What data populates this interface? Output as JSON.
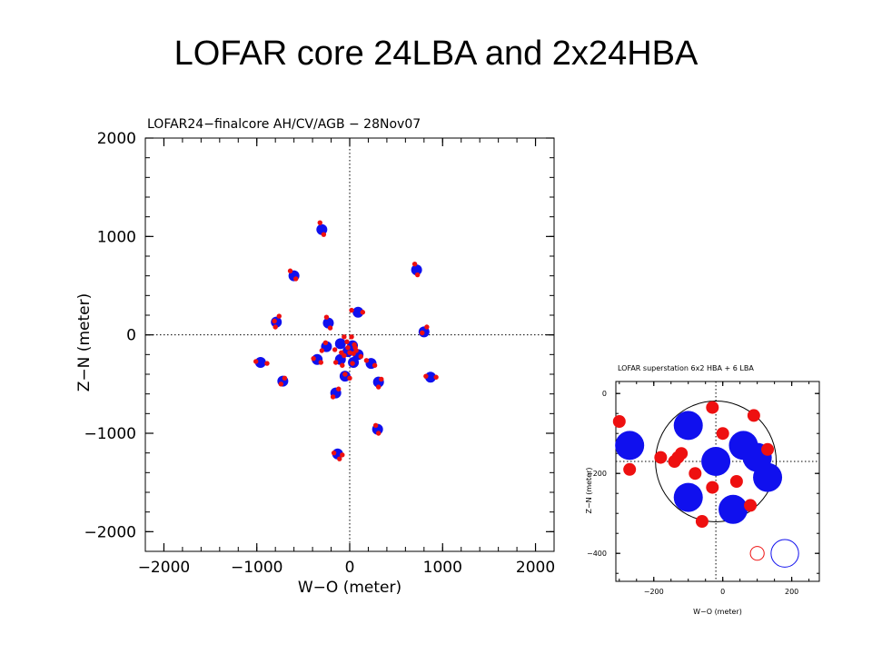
{
  "slide": {
    "title": "LOFAR core  24LBA and 2x24HBA"
  },
  "colors": {
    "hba": "#1010ee",
    "lba": "#ee1010",
    "axis": "#000000"
  },
  "chart_data": [
    {
      "type": "scatter",
      "title": "LOFAR24−finalcore     AH/CV/AGB   − 28Nov07",
      "xlabel": "W−O  (meter)",
      "ylabel": "Z−N  (meter)",
      "xlim": [
        -2200,
        2200
      ],
      "ylim": [
        -2200,
        2000
      ],
      "xticks": [
        -2000,
        -1000,
        0,
        1000,
        2000
      ],
      "xtick_labels": [
        "−2000",
        "−1000",
        "0",
        "1000",
        "2000"
      ],
      "yticks": [
        -2000,
        -1000,
        0,
        1000,
        2000
      ],
      "ytick_labels": [
        "−2000",
        "−1000",
        "0",
        "1000",
        "2000"
      ],
      "crosshair": [
        0,
        0
      ],
      "series": [
        {
          "marker": "blue-dot",
          "x": [
            -300,
            -600,
            -790,
            -230,
            90,
            720,
            800,
            870,
            -960,
            -720,
            -350,
            -250,
            -100,
            30,
            230,
            310,
            300,
            -150,
            -130,
            90,
            -100,
            40,
            -20,
            -50
          ],
          "y": [
            1070,
            600,
            130,
            120,
            230,
            660,
            30,
            -430,
            -280,
            -470,
            -250,
            -120,
            -90,
            -110,
            -290,
            -480,
            -960,
            -590,
            -1210,
            -200,
            -250,
            -280,
            -170,
            -420
          ]
        },
        {
          "marker": "red-dot",
          "x": [
            -320,
            -280,
            -580,
            -640,
            -760,
            -800,
            -810,
            -210,
            -250,
            20,
            140,
            700,
            730,
            780,
            830,
            820,
            930,
            -890,
            -1010,
            -700,
            -740,
            -390,
            -310,
            -260,
            -300,
            -160,
            -60,
            -150,
            20,
            50,
            180,
            270,
            310,
            340,
            280,
            310,
            -120,
            -180,
            -80,
            -170,
            -110,
            -90,
            40,
            120,
            30,
            -80,
            -50,
            0,
            -60,
            70,
            60,
            0,
            -30,
            -20
          ],
          "y": [
            1140,
            1020,
            570,
            650,
            190,
            80,
            140,
            70,
            180,
            250,
            230,
            720,
            610,
            20,
            80,
            -420,
            -430,
            -290,
            -270,
            -440,
            -500,
            -240,
            -280,
            -80,
            -160,
            -150,
            -20,
            -280,
            -20,
            -100,
            -260,
            -310,
            -530,
            -450,
            -920,
            -1000,
            -550,
            -630,
            -1220,
            -1200,
            -1260,
            -180,
            -190,
            -220,
            -290,
            -310,
            -400,
            -440,
            -210,
            -160,
            -130,
            -180,
            -70,
            -130
          ]
        }
      ]
    },
    {
      "type": "scatter",
      "title": "LOFAR superstation    6x2 HBA    + 6 LBA",
      "xlabel": "W−O (meter)",
      "ylabel": "Z−N (meter)",
      "xlim": [
        -310,
        280
      ],
      "ylim": [
        -470,
        30
      ],
      "xticks": [
        -200,
        0,
        200
      ],
      "xtick_labels": [
        "−200",
        "0",
        "200"
      ],
      "yticks": [
        0,
        -200,
        -400
      ],
      "ytick_labels": [
        "0",
        "−200",
        "−400"
      ],
      "crosshair": [
        -20,
        -170
      ],
      "outline_circle": {
        "x": -20,
        "y": -170,
        "r": 175
      },
      "series": [
        {
          "marker": "blue-disk-large",
          "x": [
            -270,
            -100,
            60,
            -20,
            100,
            130,
            -100,
            30
          ],
          "y": [
            -130,
            -80,
            -130,
            -170,
            -160,
            -210,
            -260,
            -290
          ]
        },
        {
          "marker": "red-disk-small",
          "x": [
            -300,
            -270,
            -180,
            -130,
            -30,
            0,
            90,
            130,
            -120,
            -140,
            -80,
            -30,
            40,
            80,
            -60
          ],
          "y": [
            -70,
            -190,
            -160,
            -160,
            -35,
            -100,
            -55,
            -140,
            -150,
            -170,
            -200,
            -235,
            -220,
            -280,
            -320
          ]
        }
      ],
      "legend_circles": [
        {
          "x": 100,
          "y": -400,
          "r": 20,
          "color": "#ee1010"
        },
        {
          "x": 180,
          "y": -400,
          "r": 40,
          "color": "#1010ee"
        }
      ]
    }
  ]
}
